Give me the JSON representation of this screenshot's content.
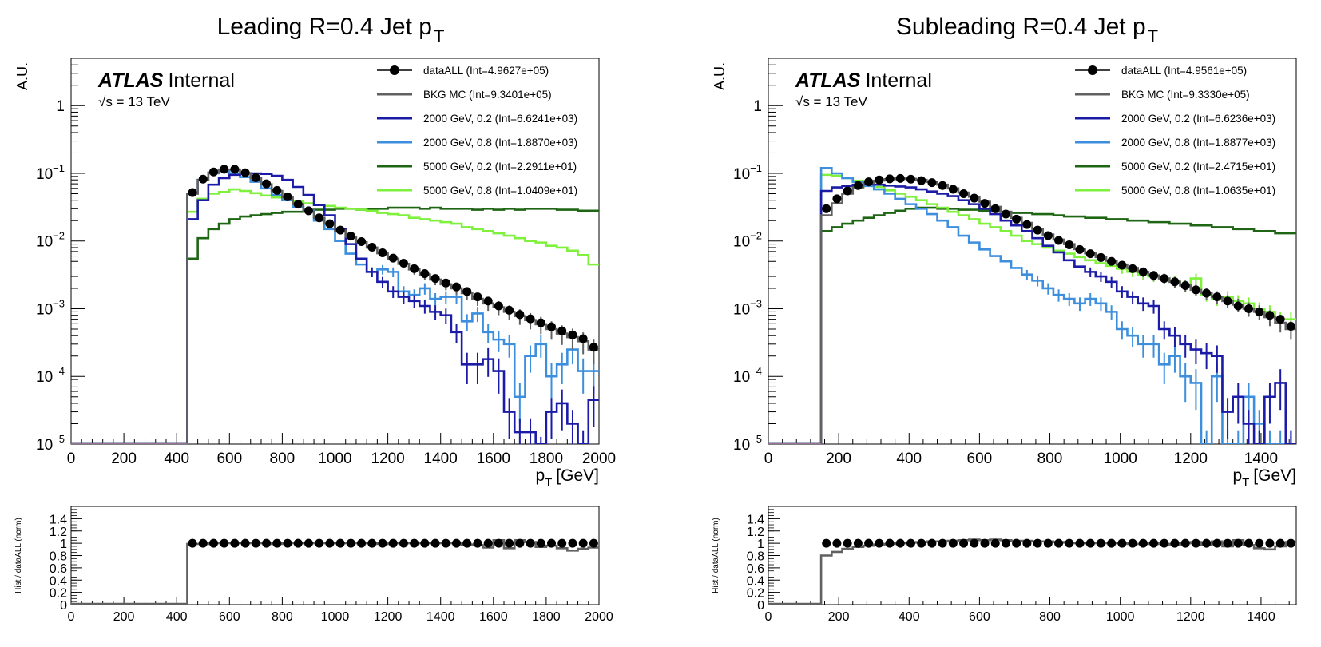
{
  "chart_data": [
    {
      "type": "line",
      "title_main": "Leading R=0.4 Jet p",
      "title_sub": "T",
      "ylabel": "A.U.",
      "xlabel_main": "p",
      "xlabel_sub": "T",
      "xlabel_unit": "[GeV]",
      "atlas_label": "ATLAS",
      "atlas_status": "Internal",
      "energy_label": "√s = 13 TeV",
      "xlim": [
        0,
        2000
      ],
      "ylim": [
        1e-05,
        5
      ],
      "yscale": "log",
      "x_ticks": [
        "0",
        "200",
        "400",
        "600",
        "800",
        "1000",
        "1200",
        "1400",
        "1600",
        "1800",
        "2000"
      ],
      "y_ticks": [
        {
          "base": "10",
          "exp": "−5"
        },
        {
          "base": "10",
          "exp": "−4"
        },
        {
          "base": "10",
          "exp": "−3"
        },
        {
          "base": "10",
          "exp": "−2"
        },
        {
          "base": "10",
          "exp": "−1"
        },
        {
          "base": "1",
          "exp": ""
        }
      ],
      "x": [
        460,
        500,
        540,
        580,
        620,
        660,
        700,
        740,
        780,
        820,
        860,
        900,
        940,
        980,
        1020,
        1060,
        1100,
        1140,
        1180,
        1220,
        1260,
        1300,
        1340,
        1380,
        1420,
        1460,
        1500,
        1540,
        1580,
        1620,
        1660,
        1700,
        1740,
        1780,
        1820,
        1860,
        1900,
        1940,
        1980
      ],
      "series": [
        {
          "name": "dataALL (Int=4.9627e+05)",
          "color": "#000000",
          "style": "points",
          "values": [
            0.052,
            0.082,
            0.105,
            0.115,
            0.115,
            0.102,
            0.086,
            0.07,
            0.056,
            0.045,
            0.035,
            0.028,
            0.022,
            0.018,
            0.0145,
            0.0118,
            0.0098,
            0.0081,
            0.0067,
            0.0056,
            0.0047,
            0.0039,
            0.0033,
            0.0028,
            0.0024,
            0.0021,
            0.0018,
            0.0015,
            0.0013,
            0.0011,
            0.00095,
            0.00082,
            0.00071,
            0.00062,
            0.00054,
            0.00047,
            0.00041,
            0.00036,
            0.00027
          ]
        },
        {
          "name": "BKG MC (Int=9.3401e+05)",
          "color": "#616161",
          "style": "step",
          "values": [
            0.05,
            0.08,
            0.103,
            0.114,
            0.114,
            0.101,
            0.085,
            0.069,
            0.055,
            0.044,
            0.035,
            0.027,
            0.022,
            0.018,
            0.0143,
            0.0116,
            0.0096,
            0.008,
            0.0066,
            0.0055,
            0.0046,
            0.0038,
            0.0032,
            0.0027,
            0.0023,
            0.002,
            0.0017,
            0.0014,
            0.0012,
            0.00105,
            0.0009,
            0.00078,
            0.00068,
            0.00059,
            0.0005,
            0.00043,
            0.00038,
            0.00033,
            0.00025
          ]
        },
        {
          "name": "2000 GeV, 0.2 (Int=6.6241e+03)",
          "color": "#1b1ba8",
          "style": "step",
          "values": [
            0.021,
            0.04,
            0.068,
            0.085,
            0.095,
            0.1,
            0.1,
            0.098,
            0.092,
            0.08,
            0.063,
            0.048,
            0.034,
            0.024,
            0.015,
            0.009,
            0.0055,
            0.0035,
            0.0025,
            0.0018,
            0.0015,
            0.0013,
            0.0011,
            0.0009,
            0.0008,
            0.00045,
            0.00015,
            0.00015,
            0.00018,
            0.00012,
            3e-05,
            1.5e-05,
            1.5e-05,
            8e-06,
            3e-05,
            4e-05,
            2e-05,
            1e-05,
            4.5e-05
          ]
        },
        {
          "name": "2000 GeV, 0.8 (Int=1.8870e+03)",
          "color": "#3d8fdd",
          "style": "step",
          "values": [
            0.05,
            0.08,
            0.1,
            0.11,
            0.1,
            0.088,
            0.075,
            0.06,
            0.048,
            0.04,
            0.032,
            0.028,
            0.02,
            0.015,
            0.01,
            0.0065,
            0.0045,
            0.0035,
            0.0038,
            0.0035,
            0.0018,
            0.0016,
            0.002,
            0.0014,
            0.0015,
            0.0015,
            0.00065,
            0.00085,
            0.00045,
            0.00035,
            0.0003,
            5e-05,
            0.0002,
            0.0003,
            0.0001,
            0.00015,
            0.00025,
            0.00012,
            0.00012
          ]
        },
        {
          "name": "5000 GeV, 0.2 (Int=2.2911e+01)",
          "color": "#1e6614",
          "style": "step",
          "values": [
            0.0055,
            0.011,
            0.015,
            0.018,
            0.021,
            0.023,
            0.024,
            0.025,
            0.026,
            0.027,
            0.027,
            0.028,
            0.029,
            0.029,
            0.03,
            0.03,
            0.029,
            0.03,
            0.03,
            0.031,
            0.031,
            0.031,
            0.03,
            0.031,
            0.03,
            0.03,
            0.03,
            0.029,
            0.03,
            0.029,
            0.03,
            0.029,
            0.03,
            0.03,
            0.03,
            0.029,
            0.029,
            0.028,
            0.028
          ]
        },
        {
          "name": "5000 GeV, 0.8 (Int=1.0409e+01)",
          "color": "#7ff03c",
          "style": "step",
          "values": [
            0.027,
            0.042,
            0.05,
            0.053,
            0.058,
            0.055,
            0.051,
            0.047,
            0.044,
            0.041,
            0.039,
            0.036,
            0.034,
            0.033,
            0.031,
            0.03,
            0.029,
            0.028,
            0.026,
            0.025,
            0.024,
            0.022,
            0.021,
            0.02,
            0.019,
            0.018,
            0.016,
            0.015,
            0.014,
            0.013,
            0.012,
            0.011,
            0.01,
            0.0095,
            0.0085,
            0.008,
            0.0072,
            0.0062,
            0.0045
          ]
        }
      ],
      "ratio": {
        "ylabel": "Hist / dataALL (norm)",
        "ylim": [
          0,
          1.6
        ],
        "y_ticks": [
          "0",
          "0.2",
          "0.4",
          "0.6",
          "0.8",
          "1",
          "1.2",
          "1.4"
        ],
        "data_values": [
          1,
          1,
          1,
          1,
          1,
          1,
          1,
          1,
          1,
          1,
          1,
          1,
          1,
          1,
          1,
          1,
          1,
          1,
          1,
          1,
          1,
          1,
          1,
          1,
          1,
          1,
          1,
          1,
          1,
          1,
          1,
          1,
          1,
          1,
          1,
          1,
          1,
          1,
          1
        ],
        "mc_values": [
          0.99,
          0.99,
          1,
          1,
          1,
          1,
          1,
          1,
          0.99,
          1,
          1,
          1,
          1,
          1,
          1,
          1,
          1,
          1,
          0.99,
          1,
          1,
          1,
          1,
          1,
          1,
          1,
          0.98,
          0.97,
          0.93,
          1.05,
          0.92,
          1.05,
          1.02,
          0.94,
          0.96,
          0.92,
          0.88,
          0.91,
          0.93
        ]
      }
    },
    {
      "type": "line",
      "title_main": "Subleading R=0.4 Jet p",
      "title_sub": "T",
      "ylabel": "A.U.",
      "xlabel_main": "p",
      "xlabel_sub": "T",
      "xlabel_unit": "[GeV]",
      "atlas_label": "ATLAS",
      "atlas_status": "Internal",
      "energy_label": "√s = 13 TeV",
      "xlim": [
        0,
        1500
      ],
      "ylim": [
        1e-05,
        5
      ],
      "yscale": "log",
      "x_ticks": [
        "0",
        "200",
        "400",
        "600",
        "800",
        "1000",
        "1200",
        "1400"
      ],
      "y_ticks": [
        {
          "base": "10",
          "exp": "−5"
        },
        {
          "base": "10",
          "exp": "−4"
        },
        {
          "base": "10",
          "exp": "−3"
        },
        {
          "base": "10",
          "exp": "−2"
        },
        {
          "base": "10",
          "exp": "−1"
        },
        {
          "base": "1",
          "exp": ""
        }
      ],
      "x": [
        165,
        195,
        225,
        255,
        285,
        315,
        345,
        375,
        405,
        435,
        465,
        495,
        525,
        555,
        585,
        615,
        645,
        675,
        705,
        735,
        765,
        795,
        825,
        855,
        885,
        915,
        945,
        975,
        1005,
        1035,
        1065,
        1095,
        1125,
        1155,
        1185,
        1215,
        1245,
        1275,
        1305,
        1335,
        1365,
        1395,
        1425,
        1455,
        1485
      ],
      "series": [
        {
          "name": "dataALL (Int=4.9561e+05)",
          "color": "#000000",
          "style": "points",
          "values": [
            0.03,
            0.042,
            0.055,
            0.066,
            0.075,
            0.08,
            0.083,
            0.084,
            0.082,
            0.078,
            0.073,
            0.066,
            0.058,
            0.05,
            0.043,
            0.036,
            0.03,
            0.025,
            0.021,
            0.0175,
            0.0145,
            0.012,
            0.0102,
            0.0088,
            0.0075,
            0.0065,
            0.0057,
            0.005,
            0.0044,
            0.0039,
            0.0035,
            0.0031,
            0.0028,
            0.0025,
            0.0022,
            0.0019,
            0.0017,
            0.0015,
            0.0013,
            0.0011,
            0.001,
            0.0009,
            0.0008,
            0.0007,
            0.00055
          ]
        },
        {
          "name": "BKG MC (Int=9.3330e+05)",
          "color": "#616161",
          "style": "step",
          "values": [
            0.024,
            0.036,
            0.05,
            0.062,
            0.072,
            0.078,
            0.082,
            0.084,
            0.083,
            0.08,
            0.075,
            0.068,
            0.06,
            0.052,
            0.045,
            0.038,
            0.032,
            0.027,
            0.022,
            0.0185,
            0.015,
            0.0125,
            0.0105,
            0.009,
            0.0076,
            0.0066,
            0.0058,
            0.0051,
            0.0045,
            0.004,
            0.0035,
            0.0031,
            0.0028,
            0.0025,
            0.0022,
            0.0019,
            0.0017,
            0.0015,
            0.0013,
            0.00115,
            0.001,
            0.0009,
            0.00075,
            0.00062,
            0.0005
          ]
        },
        {
          "name": "2000 GeV, 0.2 (Int=6.6236e+03)",
          "color": "#1b1ba8",
          "style": "step",
          "values": [
            0.055,
            0.062,
            0.065,
            0.068,
            0.07,
            0.068,
            0.066,
            0.064,
            0.062,
            0.058,
            0.054,
            0.05,
            0.046,
            0.04,
            0.035,
            0.03,
            0.025,
            0.02,
            0.017,
            0.014,
            0.011,
            0.0085,
            0.0068,
            0.0052,
            0.0042,
            0.0035,
            0.003,
            0.0025,
            0.0018,
            0.0015,
            0.0012,
            0.0011,
            0.0005,
            0.0004,
            0.0003,
            0.00025,
            0.00022,
            0.0002,
            3e-05,
            5e-05,
            2e-05,
            1e-05,
            5e-05,
            8e-05,
            1e-05
          ]
        },
        {
          "name": "2000 GeV, 0.8 (Int=1.8877e+03)",
          "color": "#3d8fdd",
          "style": "step",
          "values": [
            0.12,
            0.1,
            0.085,
            0.075,
            0.065,
            0.058,
            0.05,
            0.042,
            0.035,
            0.03,
            0.025,
            0.02,
            0.016,
            0.012,
            0.0095,
            0.0075,
            0.006,
            0.005,
            0.004,
            0.0032,
            0.0026,
            0.002,
            0.0016,
            0.0014,
            0.0012,
            0.0014,
            0.0012,
            0.0009,
            0.0005,
            0.0004,
            0.0003,
            0.0003,
            0.00015,
            0.0002,
            0.0001,
            8e-05,
            1e-05,
            0.0001,
            1e-05,
            1e-05,
            5e-05,
            2e-05,
            1e-05,
            1e-05,
            1e-05
          ]
        },
        {
          "name": "5000 GeV, 0.2 (Int=2.4715e+01)",
          "color": "#1e6614",
          "style": "step",
          "values": [
            0.014,
            0.016,
            0.018,
            0.02,
            0.022,
            0.024,
            0.026,
            0.028,
            0.03,
            0.031,
            0.031,
            0.03,
            0.03,
            0.029,
            0.029,
            0.028,
            0.028,
            0.027,
            0.026,
            0.026,
            0.025,
            0.025,
            0.024,
            0.023,
            0.023,
            0.022,
            0.022,
            0.021,
            0.021,
            0.02,
            0.02,
            0.019,
            0.019,
            0.018,
            0.018,
            0.017,
            0.017,
            0.016,
            0.016,
            0.015,
            0.015,
            0.014,
            0.014,
            0.013,
            0.013
          ]
        },
        {
          "name": "5000 GeV, 0.8 (Int=1.0635e+01)",
          "color": "#7ff03c",
          "style": "step",
          "values": [
            0.095,
            0.092,
            0.085,
            0.078,
            0.07,
            0.063,
            0.056,
            0.05,
            0.045,
            0.04,
            0.035,
            0.031,
            0.027,
            0.024,
            0.021,
            0.018,
            0.016,
            0.014,
            0.012,
            0.01,
            0.009,
            0.008,
            0.0072,
            0.0065,
            0.0058,
            0.0052,
            0.0047,
            0.0043,
            0.0039,
            0.0035,
            0.0032,
            0.003,
            0.0028,
            0.0026,
            0.0022,
            0.0028,
            0.0016,
            0.0014,
            0.0015,
            0.0013,
            0.0012,
            0.001,
            0.0009,
            0.0007,
            0.0007
          ]
        }
      ],
      "ratio": {
        "ylabel": "Hist / dataALL (norm)",
        "ylim": [
          0,
          1.6
        ],
        "y_ticks": [
          "0",
          "0.2",
          "0.4",
          "0.6",
          "0.8",
          "1",
          "1.2",
          "1.4"
        ],
        "data_values": [
          1,
          1,
          1,
          1,
          1,
          1,
          1,
          1,
          1,
          1,
          1,
          1,
          1,
          1,
          1,
          1,
          1,
          1,
          1,
          1,
          1,
          1,
          1,
          1,
          1,
          1,
          1,
          1,
          1,
          1,
          1,
          1,
          1,
          1,
          1,
          1,
          1,
          1,
          1,
          1,
          1,
          1,
          1,
          1,
          1
        ],
        "mc_values": [
          0.8,
          0.86,
          0.91,
          0.94,
          0.96,
          0.98,
          0.99,
          1,
          1.01,
          1.02,
          1.03,
          1.03,
          1.04,
          1.05,
          1.06,
          1.05,
          1.06,
          1.05,
          1.04,
          1.04,
          1.03,
          1.03,
          1.02,
          1.01,
          1,
          1,
          1,
          1,
          1,
          0.99,
          0.99,
          1,
          0.99,
          0.98,
          1,
          1.02,
          0.98,
          1.03,
          0.95,
          1.05,
          0.97,
          0.92,
          0.9,
          0.95,
          1.02
        ]
      }
    }
  ]
}
